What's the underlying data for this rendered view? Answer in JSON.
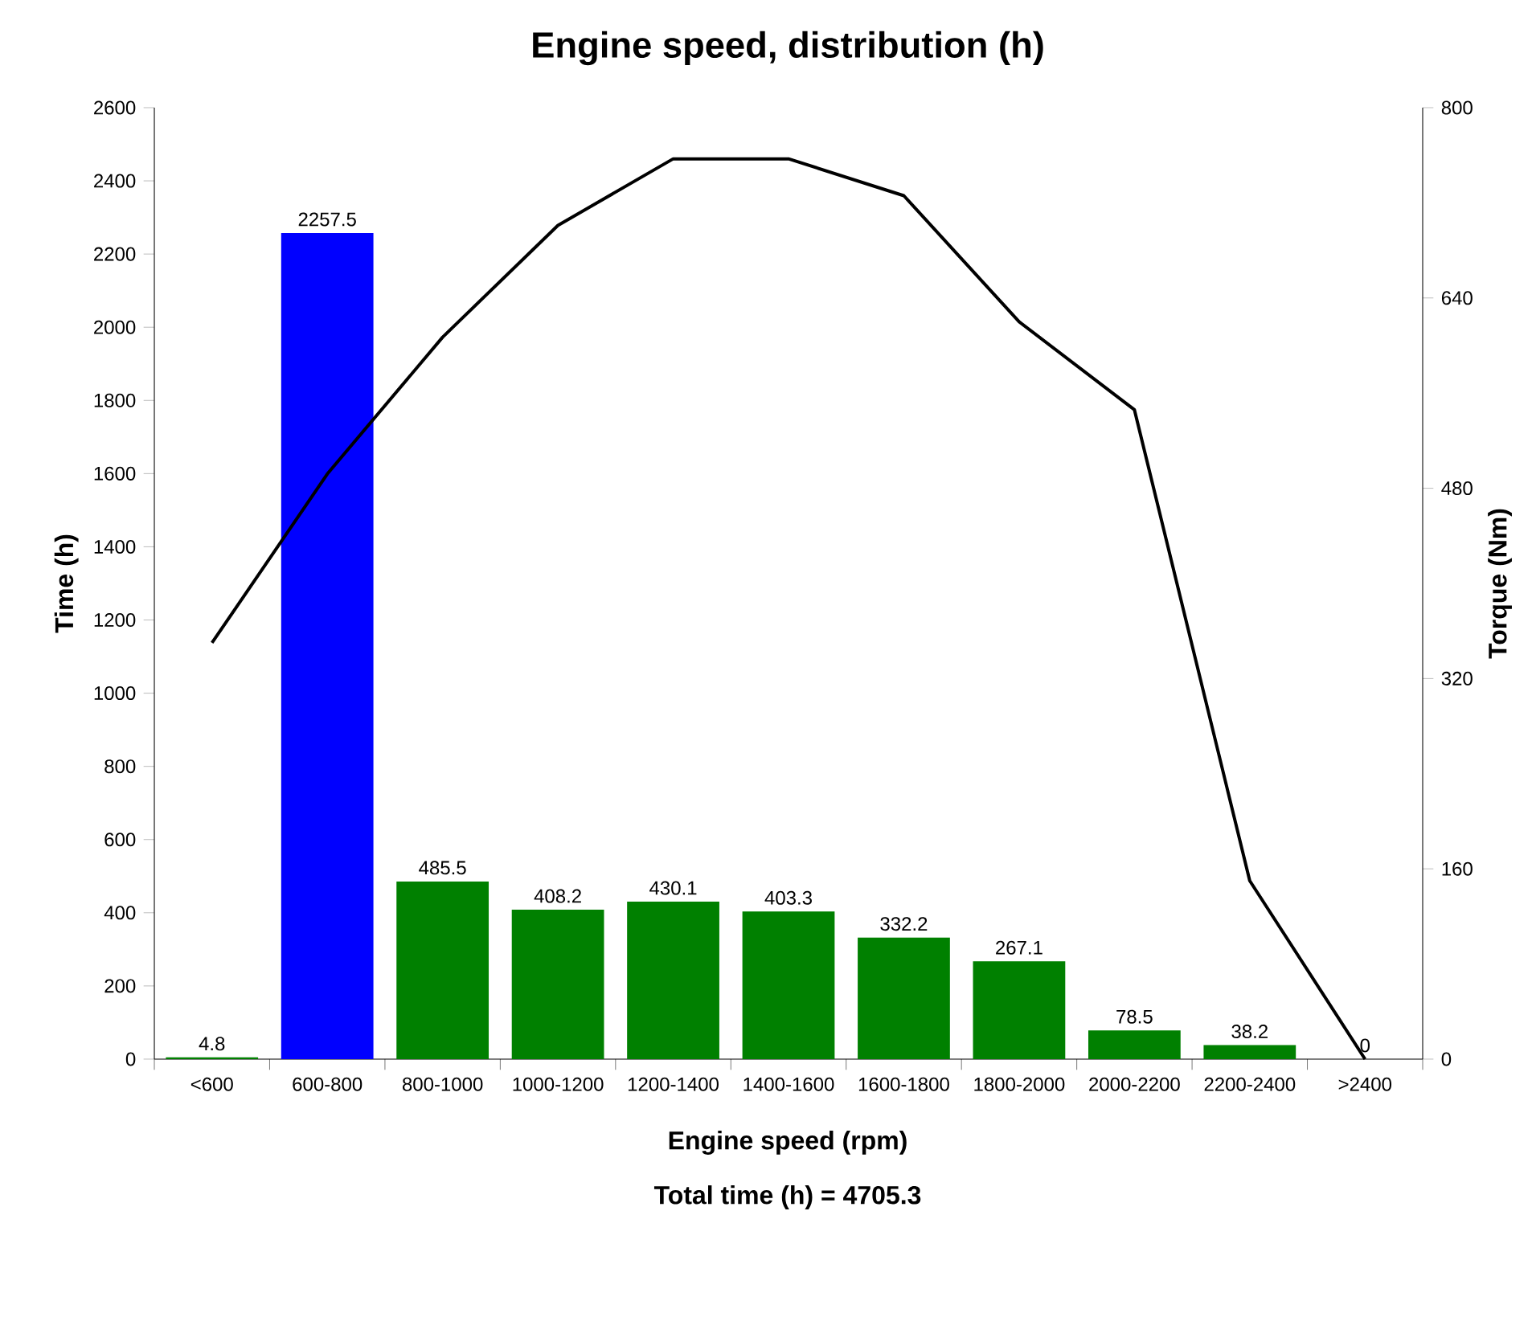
{
  "chart_data": {
    "type": "bar",
    "title": "Engine speed, distribution (h)",
    "xlabel": "Engine speed (rpm)",
    "ylabel": "Time (h)",
    "y2label": "Torque (Nm)",
    "categories": [
      "<600",
      "600-800",
      "800-1000",
      "1000-1200",
      "1200-1400",
      "1400-1600",
      "1600-1800",
      "1800-2000",
      "2000-2200",
      "2200-2400",
      ">2400"
    ],
    "series": [
      {
        "colors": [
          "#008000",
          "#0000ff",
          "#008000",
          "#008000",
          "#008000",
          "#008000",
          "#008000",
          "#008000",
          "#008000",
          "#008000",
          "#008000"
        ],
        "values": [
          4.8,
          2257.5,
          485.5,
          408.2,
          430.1,
          403.3,
          332.2,
          267.1,
          78.5,
          38.2,
          0
        ],
        "value_labels": [
          "4.8",
          "2257.5",
          "485.5",
          "408.2",
          "430.1",
          "403.3",
          "332.2",
          "267.1",
          "78.5",
          "38.2",
          "0"
        ]
      },
      {
        "type": "line",
        "axis": "y2",
        "color": "#000000",
        "line_style": "solid",
        "values": [
          350,
          492,
          607,
          701,
          757,
          757,
          726,
          620,
          546,
          150,
          0
        ]
      }
    ],
    "ylim": [
      0,
      2600
    ],
    "yticks": [
      0,
      200,
      400,
      600,
      800,
      1000,
      1200,
      1400,
      1600,
      1800,
      2000,
      2200,
      2400,
      2600
    ],
    "y2lim": [
      0,
      800
    ],
    "y2ticks": [
      0,
      160,
      320,
      480,
      640,
      800
    ],
    "annotations": [
      "Total time (h) = 4705.3"
    ],
    "grid": false,
    "marker": "none"
  }
}
